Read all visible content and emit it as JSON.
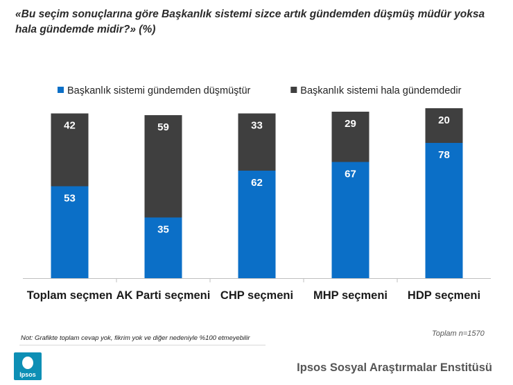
{
  "title": "«Bu seçim sonuçlarına göre Başkanlık sistemi sizce artık gündemden düşmüş müdür yoksa hala gündemde midir?»",
  "title_unit": "(%)",
  "chart_data": {
    "type": "bar",
    "stacked": true,
    "categories": [
      "Toplam seçmen",
      "AK Parti seçmeni",
      "CHP seçmeni",
      "MHP seçmeni",
      "HDP seçmeni"
    ],
    "series": [
      {
        "name": "Başkanlık sistemi gündemden düşmüştür",
        "values": [
          53,
          35,
          62,
          67,
          78
        ],
        "color": "#0b6fc7"
      },
      {
        "name": "Başkanlık sistemi hala gündemdedir",
        "values": [
          42,
          59,
          33,
          29,
          20
        ],
        "color": "#3f3f3f"
      }
    ],
    "ylim": [
      0,
      100
    ],
    "grid": false,
    "legend": "top"
  },
  "note": "Not: Grafikte toplam cevap yok, fikrim yok ve diğer nedeniyle %100 etmeyebilir",
  "sample": "Toplam n=1570",
  "logo_text": "Ipsos",
  "brand": "Ipsos Sosyal Araştırmalar Enstitüsü"
}
